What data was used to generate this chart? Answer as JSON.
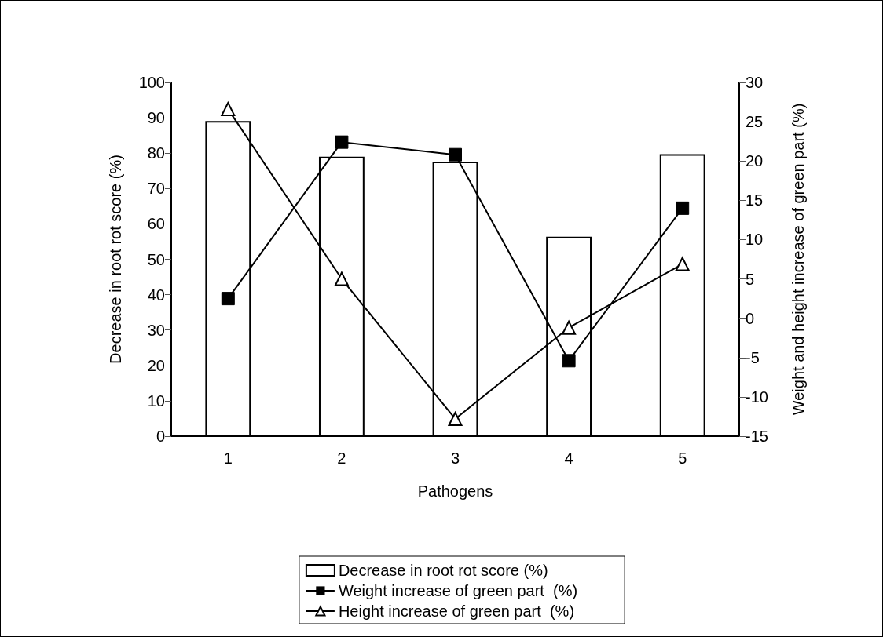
{
  "chart_data": {
    "type": "bar",
    "xlabel": "Pathogens",
    "ylabel": "Decrease in root rot score (%)",
    "y2label": "Weight and height increase of green part (%)",
    "categories": [
      "1",
      "2",
      "3",
      "4",
      "5"
    ],
    "series": [
      {
        "name": "Decrease in root rot score (%)",
        "color": "#ffffff",
        "values": [
          89.1,
          79,
          77.6,
          56.4,
          79.7
        ]
      },
      {
        "name": "Weight increase of green part  (%)",
        "type": "line",
        "axis": "y2",
        "color": "#000000",
        "marker": "square",
        "values": [
          2.5,
          22.4,
          20.8,
          -5.4,
          14
        ]
      },
      {
        "name": "Height increase of green part  (%)",
        "type": "line",
        "axis": "y2",
        "color": "#000000",
        "marker": "triangle",
        "values": [
          26.6,
          5,
          -12.8,
          -1.2,
          6.9
        ]
      }
    ],
    "ylim": [
      0,
      100
    ],
    "yticks": [
      0,
      10,
      20,
      30,
      40,
      50,
      60,
      70,
      80,
      90,
      100
    ],
    "y2lim": [
      -15,
      30
    ],
    "y2ticks": [
      -15,
      -10,
      -5,
      0,
      5,
      10,
      15,
      20,
      25,
      30
    ],
    "grid": false,
    "legend": "bottom"
  }
}
